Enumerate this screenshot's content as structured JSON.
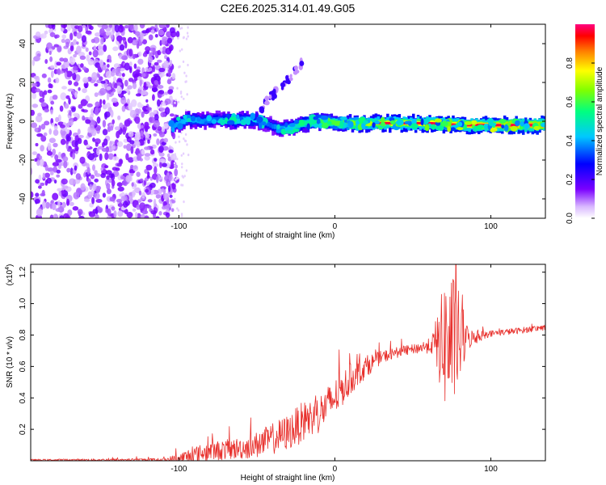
{
  "title": "C2E6.2025.314.01.49.G05",
  "chart_data": [
    {
      "type": "heatmap",
      "name": "spectrogram",
      "xlabel": "Height of straight line (km)",
      "ylabel": "Frequency (Hz)",
      "xlim": [
        -195,
        135
      ],
      "ylim": [
        -50,
        50
      ],
      "xticks": [
        -100,
        0,
        100
      ],
      "yticks": [
        -40,
        -20,
        0,
        20,
        40
      ],
      "colorbar": {
        "label": "Normalized spectral amplitude",
        "range": [
          0.0,
          1.0
        ],
        "ticks": [
          "0.0",
          "0.2",
          "0.4",
          "0.6",
          "0.8"
        ],
        "tick_values": [
          0.0,
          0.2,
          0.4,
          0.6,
          0.8
        ]
      },
      "noise_region_x": [
        -195,
        -103
      ],
      "ridge": {
        "x": [
          -105,
          -95,
          -85,
          -75,
          -65,
          -55,
          -48,
          -42,
          -35,
          -28,
          -20,
          -10,
          0,
          10,
          20,
          40,
          60,
          80,
          100,
          120,
          135
        ],
        "y": [
          -2.5,
          1,
          0,
          1,
          0,
          1,
          0,
          -2,
          -4,
          -3,
          -1,
          0,
          -1,
          -1,
          -1,
          -1,
          -1,
          -2,
          -2,
          -2,
          -2
        ],
        "amplitude": [
          0.45,
          0.5,
          0.45,
          0.4,
          0.55,
          0.5,
          0.45,
          0.4,
          0.5,
          0.55,
          0.6,
          0.7,
          0.75,
          0.8,
          0.85,
          0.9,
          0.92,
          0.95,
          0.97,
          1.0,
          1.0
        ]
      },
      "branch": {
        "x": [
          -50,
          -44,
          -38,
          -32,
          -26,
          -20
        ],
        "y": [
          4,
          10,
          15,
          20,
          25,
          32
        ]
      }
    },
    {
      "type": "line",
      "name": "snr",
      "xlabel": "Height of straight line (km)",
      "ylabel": "SNR (10 * v/v)",
      "y_multiplier": "(x10",
      "y_multiplier_exp": "4",
      "y_multiplier_close": ")",
      "xlim": [
        -195,
        135
      ],
      "ylim": [
        0.0,
        1.25
      ],
      "xticks": [
        -100,
        0,
        100
      ],
      "yticks": [
        "0.2",
        "0.4",
        "0.6",
        "0.8",
        "1.0",
        "1.2"
      ],
      "ytick_values": [
        0.2,
        0.4,
        0.6,
        0.8,
        1.0,
        1.2
      ],
      "color": "#e8302c",
      "envelope": {
        "x": [
          -195,
          -110,
          -100,
          -90,
          -80,
          -60,
          -50,
          -40,
          -30,
          -20,
          -10,
          0,
          10,
          20,
          30,
          40,
          50,
          60,
          65,
          70,
          75,
          80,
          85,
          90,
          95,
          100,
          110,
          120,
          135
        ],
        "y": [
          0.005,
          0.006,
          0.01,
          0.04,
          0.06,
          0.08,
          0.1,
          0.14,
          0.18,
          0.25,
          0.3,
          0.4,
          0.52,
          0.6,
          0.66,
          0.69,
          0.71,
          0.73,
          0.74,
          0.75,
          0.76,
          0.77,
          0.78,
          0.78,
          0.8,
          0.81,
          0.82,
          0.83,
          0.85
        ]
      },
      "noise": {
        "x": [
          -195,
          -110,
          -95,
          -80,
          -60,
          -40,
          -20,
          0,
          10,
          30,
          50,
          62,
          68,
          72,
          76,
          80,
          85,
          90,
          100,
          135
        ],
        "y": [
          0.005,
          0.01,
          0.05,
          0.06,
          0.07,
          0.1,
          0.13,
          0.12,
          0.1,
          0.04,
          0.03,
          0.05,
          0.3,
          0.5,
          0.42,
          0.3,
          0.08,
          0.04,
          0.02,
          0.02
        ]
      }
    }
  ]
}
